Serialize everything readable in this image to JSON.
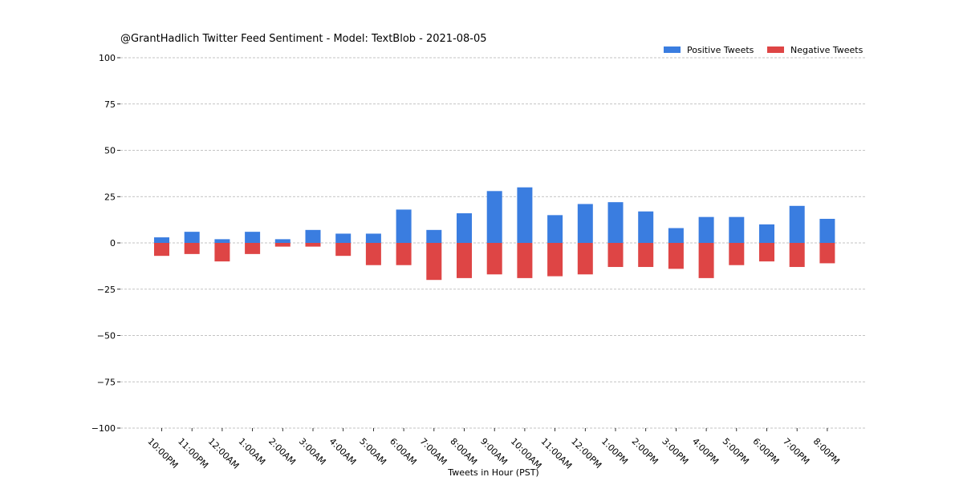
{
  "chart_data": {
    "type": "bar",
    "title": "@GrantHadlich Twitter Feed Sentiment - Model: TextBlob - 2021-08-05",
    "xlabel": "Tweets in Hour (PST)",
    "ylabel": "",
    "ylim": [
      -100,
      100
    ],
    "yticks": [
      100,
      75,
      50,
      25,
      0,
      -25,
      -50,
      -75,
      -100
    ],
    "ytick_labels": [
      "100",
      "75",
      "50",
      "25",
      "0",
      "−25",
      "−50",
      "−75",
      "−100"
    ],
    "grid": true,
    "legend_position": "top-right",
    "categories": [
      "10:00PM",
      "11:00PM",
      "12:00AM",
      "1:00AM",
      "2:00AM",
      "3:00AM",
      "4:00AM",
      "5:00AM",
      "6:00AM",
      "7:00AM",
      "8:00AM",
      "9:00AM",
      "10:00AM",
      "11:00AM",
      "12:00PM",
      "1:00PM",
      "2:00PM",
      "3:00PM",
      "4:00PM",
      "5:00PM",
      "6:00PM",
      "7:00PM",
      "8:00PM"
    ],
    "series": [
      {
        "name": "Positive Tweets",
        "color": "#3a7de0",
        "values": [
          3,
          6,
          2,
          6,
          2,
          7,
          5,
          5,
          18,
          7,
          16,
          28,
          30,
          15,
          21,
          22,
          17,
          8,
          14,
          14,
          10,
          20,
          13
        ]
      },
      {
        "name": "Negative Tweets",
        "color": "#de4545",
        "values": [
          -7,
          -6,
          -10,
          -6,
          -2,
          -2,
          -7,
          -12,
          -12,
          -20,
          -19,
          -17,
          -19,
          -18,
          -17,
          -13,
          -13,
          -14,
          -19,
          -12,
          -10,
          -13,
          -11
        ]
      }
    ]
  }
}
